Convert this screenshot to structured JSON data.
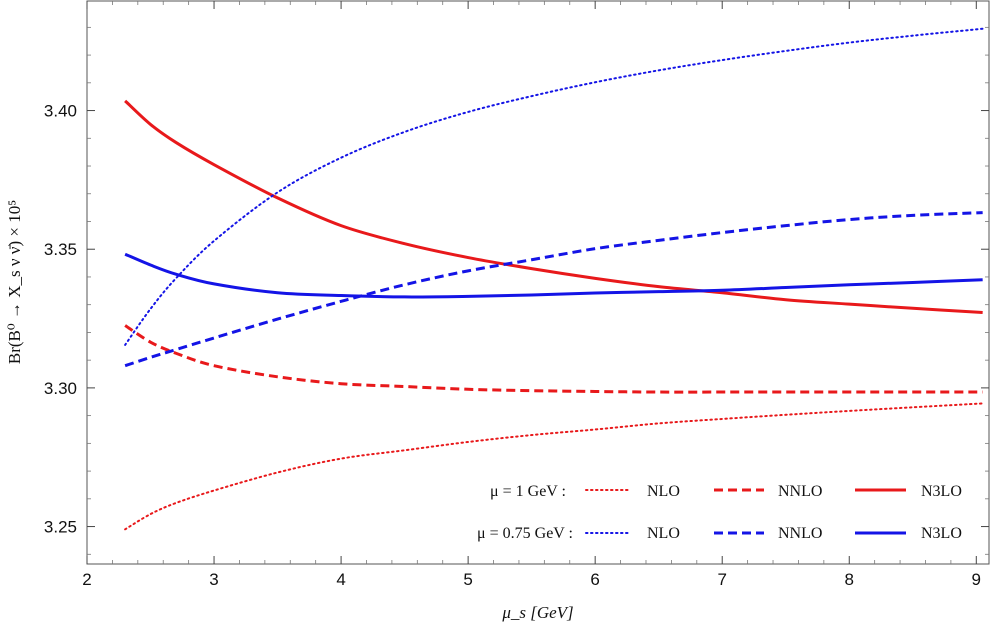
{
  "chart_data": {
    "type": "line",
    "title": "",
    "xlabel": "μ_s   [GeV]",
    "ylabel": "Br(B⁰ → X_s ν ν̄) × 10⁵",
    "xlim": [
      2.0,
      9.1
    ],
    "ylim": [
      3.2365,
      3.4395
    ],
    "x_ticks": [
      "2",
      "3",
      "4",
      "5",
      "6",
      "7",
      "8",
      "9"
    ],
    "y_ticks": [
      "3.25",
      "3.30",
      "3.35",
      "3.40"
    ],
    "grid": false,
    "legend_position": "bottom-right",
    "legend_rows": [
      {
        "label": "μ = 1 GeV :",
        "entries": [
          "NLO",
          "NNLO",
          "N3LO"
        ]
      },
      {
        "label": "μ = 0.75 GeV :",
        "entries": [
          "NLO",
          "NNLO",
          "N3LO"
        ]
      }
    ],
    "x": [
      2.3,
      2.5,
      2.7,
      3.0,
      3.5,
      4.0,
      4.5,
      5.0,
      5.5,
      6.0,
      6.5,
      7.0,
      7.5,
      8.0,
      8.5,
      9.05
    ],
    "series": [
      {
        "name": "NLO (μ = 1 GeV)",
        "color": "#e8191b",
        "dash": "dotted",
        "values": [
          3.249,
          3.2545,
          3.2585,
          3.263,
          3.2695,
          3.2745,
          3.2775,
          3.2805,
          3.283,
          3.285,
          3.2872,
          3.2888,
          3.2903,
          3.2917,
          3.293,
          3.2944
        ]
      },
      {
        "name": "NNLO (μ = 1 GeV)",
        "color": "#e8191b",
        "dash": "dashed",
        "values": [
          3.3225,
          3.3165,
          3.3125,
          3.308,
          3.304,
          3.3015,
          3.3005,
          3.2995,
          3.299,
          3.2987,
          3.2985,
          3.2985,
          3.2985,
          3.2985,
          3.2985,
          3.2985
        ]
      },
      {
        "name": "N3LO (μ = 1 GeV)",
        "color": "#e8191b",
        "dash": "solid",
        "values": [
          3.4035,
          3.395,
          3.3885,
          3.3805,
          3.3685,
          3.3585,
          3.352,
          3.347,
          3.343,
          3.3395,
          3.3365,
          3.3343,
          3.3318,
          3.3302,
          3.3287,
          3.3272
        ]
      },
      {
        "name": "NLO (μ = 0.75 GeV)",
        "color": "#1414e6",
        "dash": "dotted",
        "values": [
          3.3155,
          3.3285,
          3.3395,
          3.353,
          3.3705,
          3.383,
          3.3923,
          3.3995,
          3.4052,
          3.4102,
          3.4145,
          3.4182,
          3.4215,
          3.4245,
          3.427,
          3.4295
        ]
      },
      {
        "name": "NNLO (μ = 0.75 GeV)",
        "color": "#1414e6",
        "dash": "dashed",
        "values": [
          3.308,
          3.311,
          3.3138,
          3.318,
          3.3248,
          3.3312,
          3.3372,
          3.3422,
          3.3462,
          3.3502,
          3.3532,
          3.356,
          3.3585,
          3.3607,
          3.3622,
          3.3632
        ]
      },
      {
        "name": "N3LO (μ = 0.75 GeV)",
        "color": "#1414e6",
        "dash": "solid",
        "values": [
          3.3482,
          3.3443,
          3.341,
          3.3375,
          3.3343,
          3.3333,
          3.3328,
          3.333,
          3.3335,
          3.3342,
          3.3347,
          3.3352,
          3.3362,
          3.3372,
          3.338,
          3.339
        ]
      }
    ]
  }
}
